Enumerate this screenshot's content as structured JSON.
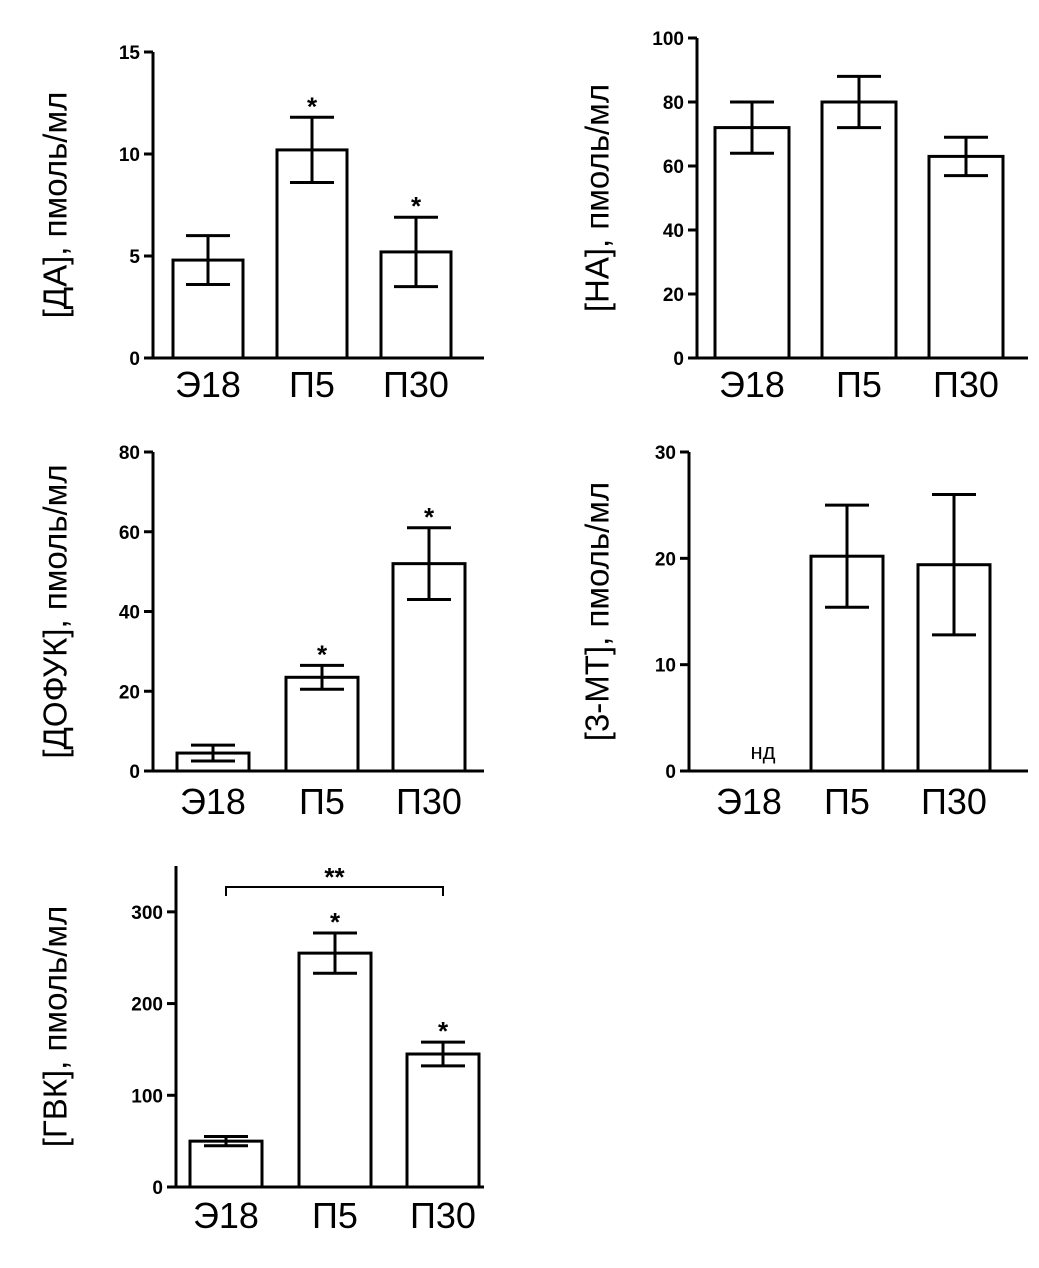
{
  "chart_data": [
    {
      "type": "bar",
      "ylabel": "[ДА], пмоль/мл",
      "categories": [
        "Э18",
        "П5",
        "П30"
      ],
      "values": [
        4.8,
        10.2,
        5.2
      ],
      "errors": [
        1.2,
        1.6,
        1.7
      ],
      "annotations": [
        "",
        "*",
        "*"
      ],
      "ylim": [
        0,
        15
      ],
      "yticks": [
        0,
        5,
        10,
        15
      ],
      "ytick_labels": [
        "0",
        "5",
        "10",
        "15"
      ],
      "grid": false,
      "colors": {
        "bar_fill": "#ffffff",
        "bar_stroke": "#000000"
      }
    },
    {
      "type": "bar",
      "ylabel": "[НА], пмоль/мл",
      "categories": [
        "Э18",
        "П5",
        "П30"
      ],
      "values": [
        72,
        80,
        63
      ],
      "errors": [
        8,
        8,
        6
      ],
      "annotations": [
        "",
        "",
        ""
      ],
      "ylim": [
        0,
        100
      ],
      "yticks": [
        0,
        20,
        40,
        60,
        80,
        100
      ],
      "ytick_labels": [
        "0",
        "20",
        "40",
        "60",
        "80",
        "100"
      ],
      "grid": false,
      "colors": {
        "bar_fill": "#ffffff",
        "bar_stroke": "#000000"
      }
    },
    {
      "type": "bar",
      "ylabel": "[ДОФУК], пмоль/мл",
      "categories": [
        "Э18",
        "П5",
        "П30"
      ],
      "values": [
        4.5,
        23.5,
        52
      ],
      "errors": [
        2,
        3,
        9
      ],
      "annotations": [
        "",
        "*",
        "*"
      ],
      "ylim": [
        0,
        80
      ],
      "yticks": [
        0,
        20,
        40,
        60,
        80
      ],
      "ytick_labels": [
        "0",
        "20",
        "40",
        "60",
        "80"
      ],
      "grid": false,
      "colors": {
        "bar_fill": "#ffffff",
        "bar_stroke": "#000000"
      }
    },
    {
      "type": "bar",
      "ylabel": "[3-МТ], пмоль/мл",
      "categories": [
        "Э18",
        "П5",
        "П30"
      ],
      "values": [
        null,
        20.2,
        19.4
      ],
      "errors": [
        null,
        4.8,
        6.6
      ],
      "value_labels": [
        "нд",
        "",
        ""
      ],
      "annotations": [
        "",
        "",
        ""
      ],
      "ylim": [
        0,
        30
      ],
      "yticks": [
        0,
        10,
        20,
        30
      ],
      "ytick_labels": [
        "0",
        "10",
        "20",
        "30"
      ],
      "grid": false,
      "colors": {
        "bar_fill": "#ffffff",
        "bar_stroke": "#000000"
      }
    },
    {
      "type": "bar",
      "ylabel": "[ГВК], пмоль/мл",
      "categories": [
        "Э18",
        "П5",
        "П30"
      ],
      "values": [
        50,
        255,
        145
      ],
      "errors": [
        5,
        22,
        13
      ],
      "annotations": [
        "",
        "*",
        "*"
      ],
      "bracket": {
        "from": 0,
        "to": 2,
        "label": "**"
      },
      "ylim": [
        0,
        350
      ],
      "yticks": [
        0,
        100,
        200,
        300
      ],
      "ytick_labels": [
        "0",
        "100",
        "200",
        "300"
      ],
      "grid": false,
      "colors": {
        "bar_fill": "#ffffff",
        "bar_stroke": "#000000"
      }
    }
  ]
}
